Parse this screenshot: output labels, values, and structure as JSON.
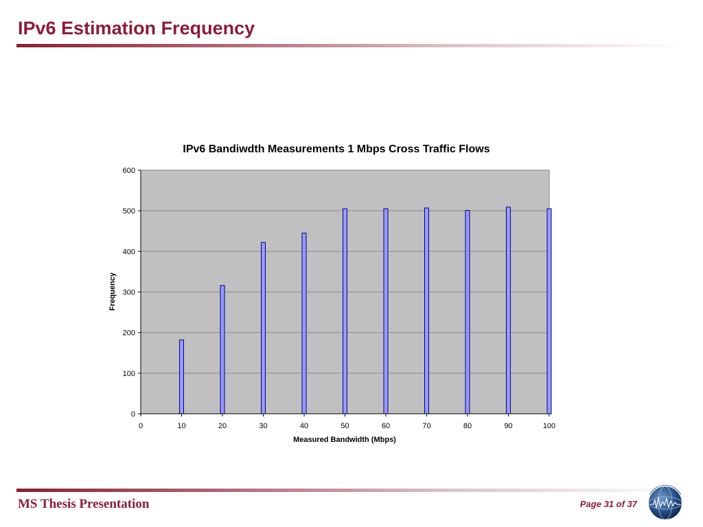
{
  "slide": {
    "title": "IPv6 Estimation Frequency",
    "footer_left": "MS Thesis Presentation",
    "footer_right": "Page 31 of 37"
  },
  "colors": {
    "accent": "#8c1c36",
    "plot_bg": "#c0c0c0",
    "bar_fill": "#9999ff",
    "bar_stroke": "#000080"
  },
  "icons": {
    "logo": "institute-globe-logo"
  },
  "chart_data": {
    "type": "bar",
    "title": "IPv6 Bandiwdth Measurements 1 Mbps Cross Traffic Flows",
    "xlabel": "Measured Bandwidth (Mbps)",
    "ylabel": "Frequency",
    "x": [
      10,
      20,
      30,
      40,
      50,
      60,
      70,
      80,
      90,
      100
    ],
    "values": [
      182,
      316,
      422,
      445,
      505,
      505,
      507,
      501,
      509,
      505
    ],
    "xlim": [
      0,
      100
    ],
    "ylim": [
      0,
      600
    ],
    "x_ticks": [
      "0",
      "10",
      "20",
      "30",
      "40",
      "50",
      "60",
      "70",
      "80",
      "90",
      "100"
    ],
    "y_ticks": [
      "0",
      "100",
      "200",
      "300",
      "400",
      "500",
      "600"
    ],
    "grid": true,
    "legend": "none"
  }
}
